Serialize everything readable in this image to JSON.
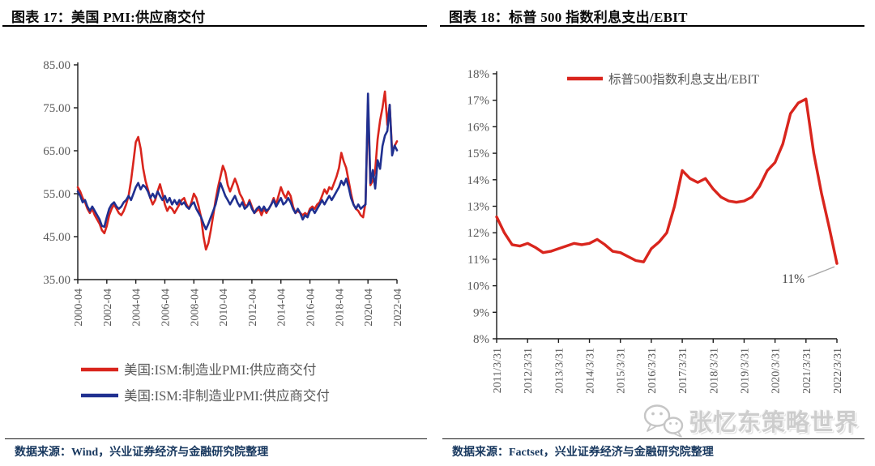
{
  "panels": [
    {
      "title": "图表 17：美国 PMI:供应商交付",
      "source": "数据来源：Wind，兴业证券经济与金融研究院整理"
    },
    {
      "title": "图表 18：标普 500 指数利息支出/EBIT",
      "source": "数据来源：Factset，兴业证券经济与金融研究院整理"
    }
  ],
  "watermark": {
    "text": "张忆东策略世界",
    "icon": "wechat-icon",
    "color": "#cdcdcd"
  },
  "colors": {
    "red_series": "#d9251d",
    "blue_series": "#203090",
    "tick_label": "#595959",
    "axis": "#1a1a1a",
    "annotation_text": "#404040",
    "leader_line": "#a6a6a6"
  },
  "chart_data": [
    {
      "type": "line",
      "title": "美国 PMI:供应商交付",
      "xlim": [
        2000.25,
        2022.25
      ],
      "ylim": [
        35,
        85
      ],
      "y_ticks": [
        35,
        45,
        55,
        65,
        75,
        85
      ],
      "y_tick_labels": [
        "35.00",
        "45.00",
        "55.00",
        "65.00",
        "75.00",
        "85.00"
      ],
      "x_ticks": [
        2000.25,
        2002.25,
        2004.25,
        2006.25,
        2008.25,
        2010.25,
        2012.25,
        2014.25,
        2016.25,
        2018.25,
        2020.25,
        2022.25
      ],
      "x_tick_labels": [
        "2000-04",
        "2002-04",
        "2004-04",
        "2006-04",
        "2008-04",
        "2010-04",
        "2012-04",
        "2014-04",
        "2016-04",
        "2018-04",
        "2020-04",
        "2022-04"
      ],
      "legend_position": "bottom",
      "grid": false,
      "series": [
        {
          "name": "美国:ISM:制造业PMI:供应商交付",
          "color": "#d9251d",
          "x_start": 2000.25,
          "x_step": 0.1666667,
          "values": [
            56.5,
            55.5,
            54,
            53,
            51.5,
            50.5,
            51.5,
            50,
            49,
            48,
            46.5,
            45.8,
            47.5,
            50,
            51.5,
            52.5,
            51.5,
            50.5,
            50,
            51,
            52.5,
            54.5,
            58,
            62.5,
            67,
            68.2,
            65.5,
            61,
            58,
            56,
            54,
            52.5,
            53.5,
            55.5,
            57.2,
            55,
            52.5,
            51,
            52,
            51.5,
            50.5,
            51.5,
            52.5,
            53.5,
            54,
            52.5,
            51.5,
            53,
            55,
            54,
            52,
            49.5,
            45,
            42,
            43.5,
            46.5,
            50,
            53.5,
            56.5,
            59,
            61.5,
            60,
            57,
            55.5,
            57,
            58.5,
            57,
            55,
            54,
            52.5,
            52,
            53.5,
            52,
            50.5,
            51,
            51.5,
            50,
            51.5,
            50.5,
            51.5,
            52.5,
            54,
            52.5,
            54.5,
            56.5,
            55,
            54,
            55.5,
            54.5,
            52,
            50.5,
            51,
            50.5,
            50,
            50.5,
            50,
            51.5,
            52,
            51.5,
            52.5,
            53,
            54.5,
            56,
            55,
            56.5,
            56,
            57.5,
            59,
            61,
            64.5,
            62.5,
            61,
            58,
            55,
            52.5,
            51.5,
            51,
            50,
            49.5,
            53,
            76,
            57,
            58,
            60.5,
            67.7,
            72,
            75,
            78.8,
            71,
            75.6,
            64.9,
            66.1,
            67.2
          ]
        },
        {
          "name": "美国:ISM:非制造业PMI:供应商交付",
          "color": "#203090",
          "x_start": 2000.25,
          "x_step": 0.1666667,
          "values": [
            55.5,
            54.5,
            53,
            53.5,
            52,
            51,
            52,
            51,
            50,
            49,
            47.5,
            47.3,
            49.5,
            51.5,
            52.5,
            53,
            52,
            51.5,
            52,
            53,
            53.5,
            54.5,
            53.5,
            55,
            56.5,
            57.5,
            56,
            57,
            56.5,
            55.5,
            54,
            55,
            54,
            55.5,
            54.5,
            53.5,
            54.5,
            53,
            54,
            52.5,
            53.5,
            52.5,
            53.5,
            52.5,
            53,
            52,
            51.5,
            52.5,
            53,
            51.5,
            50.5,
            49.5,
            48,
            46.7,
            48,
            49.5,
            51,
            52.5,
            55,
            57.5,
            56,
            54.5,
            53.5,
            52.5,
            53.5,
            54.5,
            53,
            52,
            53,
            51.5,
            52,
            53,
            51.5,
            50.5,
            51.5,
            52,
            51,
            52,
            51,
            51.5,
            52.5,
            53.5,
            52,
            53,
            54,
            52.5,
            53,
            54,
            53,
            51.5,
            50.5,
            51.5,
            50.5,
            49,
            50,
            49.5,
            51,
            51.5,
            50.5,
            51.5,
            52.5,
            53.5,
            52.5,
            53.5,
            54.5,
            53.5,
            54.5,
            55.5,
            56.5,
            58,
            57,
            58.5,
            56.5,
            54,
            52.5,
            51.5,
            52.5,
            51.5,
            52,
            52.5,
            78.3,
            57.5,
            60.5,
            56.2,
            62.8,
            60.8,
            66.1,
            68.5,
            69.6,
            75.7,
            63.9,
            66.2,
            65.1
          ]
        }
      ]
    },
    {
      "type": "line",
      "title": "标普500指数利息支出/EBIT",
      "xlim": [
        2011.25,
        2022.25
      ],
      "ylim": [
        8,
        18
      ],
      "y_ticks": [
        8,
        9,
        10,
        11,
        12,
        13,
        14,
        15,
        16,
        17,
        18
      ],
      "y_tick_labels": [
        "8%",
        "9%",
        "10%",
        "11%",
        "12%",
        "13%",
        "14%",
        "15%",
        "16%",
        "17%",
        "18%"
      ],
      "x_ticks": [
        2011.25,
        2012.25,
        2013.25,
        2014.25,
        2015.25,
        2016.25,
        2017.25,
        2018.25,
        2019.25,
        2020.25,
        2021.25,
        2022.25
      ],
      "x_tick_labels": [
        "2011/3/31",
        "2012/3/31",
        "2013/3/31",
        "2014/3/31",
        "2015/3/31",
        "2016/3/31",
        "2017/3/31",
        "2018/3/31",
        "2019/3/31",
        "2020/3/31",
        "2021/3/31",
        "2022/3/31"
      ],
      "legend_position": "top-inside",
      "grid": false,
      "series": [
        {
          "name": "标普500指数利息支出/EBIT",
          "color": "#d9251d",
          "x_start": 2011.25,
          "x_step": 0.25,
          "values": [
            12.6,
            12.0,
            11.55,
            11.5,
            11.6,
            11.45,
            11.25,
            11.3,
            11.4,
            11.5,
            11.6,
            11.55,
            11.6,
            11.75,
            11.55,
            11.3,
            11.25,
            11.1,
            10.95,
            10.9,
            11.4,
            11.65,
            12.0,
            13.0,
            14.35,
            14.05,
            13.9,
            14.05,
            13.65,
            13.35,
            13.2,
            13.15,
            13.2,
            13.35,
            13.75,
            14.35,
            14.65,
            15.35,
            16.5,
            16.9,
            17.05,
            15.0,
            13.5,
            12.2,
            10.84
          ]
        }
      ],
      "annotation": {
        "text": "11%",
        "x": 2022.25,
        "y": 10.84
      }
    }
  ]
}
